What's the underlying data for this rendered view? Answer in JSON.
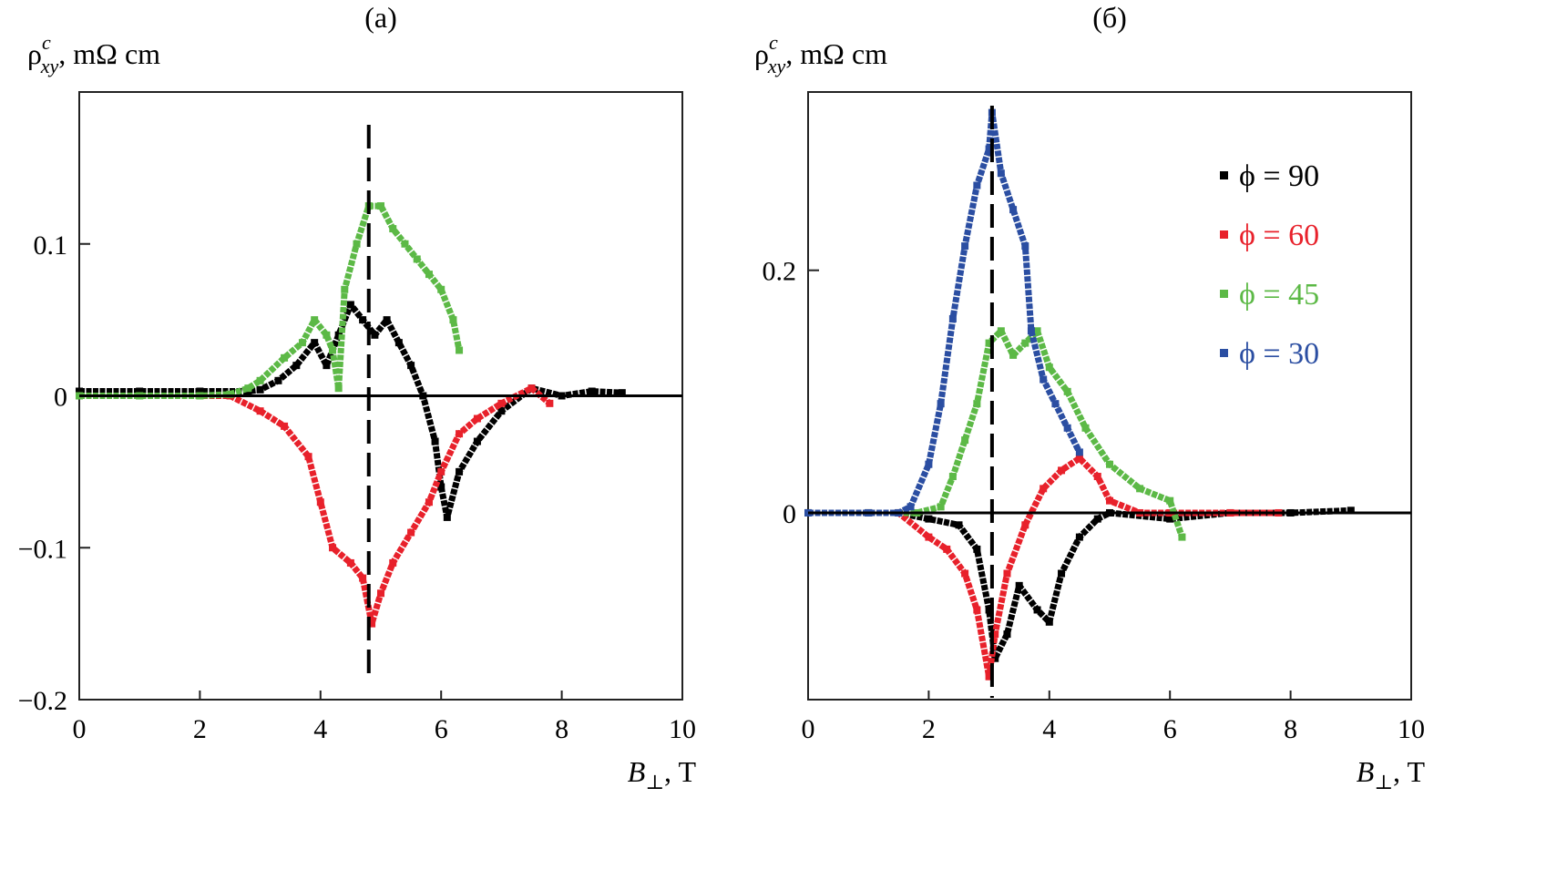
{
  "chart_data": [
    {
      "type": "scatter",
      "panel_label": "(a)",
      "ylabel": "ρ",
      "ylabel_sup": "c",
      "ylabel_sub": "xy",
      "ylabel_unit": ", mΩ cm",
      "xlabel": "B",
      "xlabel_sub": "⊥",
      "xlabel_unit": ", T",
      "xlim": [
        0,
        10
      ],
      "ylim": [
        -0.2,
        0.2
      ],
      "xticks": [
        0,
        2,
        4,
        6,
        8,
        10
      ],
      "xtick_labels": [
        "0",
        "2",
        "4",
        "6",
        "8",
        "10"
      ],
      "yticks": [
        -0.2,
        -0.1,
        0,
        0.1
      ],
      "ytick_labels": [
        "−0.2",
        "−0.1",
        "0",
        "0.1"
      ],
      "dashed_line_x": 4.8,
      "zero_line": true,
      "series": [
        {
          "name": "ϕ = 90",
          "color": "#000000",
          "points": [
            [
              0,
              0.003
            ],
            [
              1,
              0.003
            ],
            [
              2,
              0.003
            ],
            [
              2.8,
              0.003
            ],
            [
              3.0,
              0.004
            ],
            [
              3.3,
              0.01
            ],
            [
              3.6,
              0.02
            ],
            [
              3.9,
              0.035
            ],
            [
              4.1,
              0.02
            ],
            [
              4.3,
              0.04
            ],
            [
              4.5,
              0.06
            ],
            [
              4.7,
              0.05
            ],
            [
              4.9,
              0.04
            ],
            [
              5.1,
              0.05
            ],
            [
              5.3,
              0.035
            ],
            [
              5.5,
              0.02
            ],
            [
              5.7,
              0.0
            ],
            [
              5.9,
              -0.03
            ],
            [
              6.0,
              -0.06
            ],
            [
              6.1,
              -0.08
            ],
            [
              6.3,
              -0.05
            ],
            [
              6.6,
              -0.03
            ],
            [
              7.0,
              -0.01
            ],
            [
              7.5,
              0.005
            ],
            [
              8.0,
              0.0
            ],
            [
              8.5,
              0.003
            ],
            [
              9.0,
              0.002
            ]
          ]
        },
        {
          "name": "ϕ = 60",
          "color": "#e8212b",
          "points": [
            [
              0,
              0
            ],
            [
              1,
              0
            ],
            [
              2,
              0
            ],
            [
              2.5,
              0
            ],
            [
              3.0,
              -0.01
            ],
            [
              3.4,
              -0.02
            ],
            [
              3.8,
              -0.04
            ],
            [
              4.0,
              -0.07
            ],
            [
              4.2,
              -0.1
            ],
            [
              4.5,
              -0.11
            ],
            [
              4.7,
              -0.12
            ],
            [
              4.85,
              -0.15
            ],
            [
              5.0,
              -0.13
            ],
            [
              5.2,
              -0.11
            ],
            [
              5.5,
              -0.09
            ],
            [
              5.8,
              -0.07
            ],
            [
              6.0,
              -0.05
            ],
            [
              6.3,
              -0.025
            ],
            [
              6.6,
              -0.015
            ],
            [
              7.0,
              -0.005
            ],
            [
              7.5,
              0.005
            ],
            [
              7.8,
              -0.005
            ]
          ]
        },
        {
          "name": "ϕ = 45",
          "color": "#5cb946",
          "points": [
            [
              0,
              0
            ],
            [
              1,
              0
            ],
            [
              2,
              0
            ],
            [
              2.5,
              0.001
            ],
            [
              2.8,
              0.005
            ],
            [
              3.0,
              0.01
            ],
            [
              3.4,
              0.025
            ],
            [
              3.7,
              0.035
            ],
            [
              3.9,
              0.05
            ],
            [
              4.1,
              0.04
            ],
            [
              4.2,
              0.03
            ],
            [
              4.3,
              0.005
            ],
            [
              4.4,
              0.07
            ],
            [
              4.6,
              0.1
            ],
            [
              4.8,
              0.125
            ],
            [
              5.0,
              0.125
            ],
            [
              5.2,
              0.11
            ],
            [
              5.4,
              0.1
            ],
            [
              5.6,
              0.09
            ],
            [
              5.8,
              0.08
            ],
            [
              6.0,
              0.07
            ],
            [
              6.2,
              0.05
            ],
            [
              6.3,
              0.03
            ]
          ]
        }
      ]
    },
    {
      "type": "scatter",
      "panel_label": "(б)",
      "ylabel": "ρ",
      "ylabel_sup": "c",
      "ylabel_sub": "xy",
      "ylabel_unit": ", mΩ cm",
      "xlabel": "B",
      "xlabel_sub": "⊥",
      "xlabel_unit": ", T",
      "xlim": [
        0,
        10
      ],
      "ylim": [
        -0.154,
        0.347
      ],
      "xticks": [
        0,
        2,
        4,
        6,
        8,
        10
      ],
      "xtick_labels": [
        "0",
        "2",
        "4",
        "6",
        "8",
        "10"
      ],
      "yticks": [
        0,
        0.2
      ],
      "ytick_labels": [
        "0",
        "0.2"
      ],
      "dashed_line_x": 3.05,
      "zero_line": true,
      "legend_position": "top-right",
      "series": [
        {
          "name": "ϕ = 90",
          "color": "#000000",
          "points": [
            [
              0,
              0
            ],
            [
              1,
              0
            ],
            [
              1.5,
              0
            ],
            [
              2.0,
              -0.005
            ],
            [
              2.5,
              -0.01
            ],
            [
              2.8,
              -0.03
            ],
            [
              3.0,
              -0.08
            ],
            [
              3.1,
              -0.12
            ],
            [
              3.3,
              -0.1
            ],
            [
              3.5,
              -0.06
            ],
            [
              3.8,
              -0.08
            ],
            [
              4.0,
              -0.09
            ],
            [
              4.2,
              -0.05
            ],
            [
              4.5,
              -0.02
            ],
            [
              4.8,
              -0.005
            ],
            [
              5.0,
              0
            ],
            [
              6.0,
              -0.005
            ],
            [
              7.0,
              0
            ],
            [
              8.0,
              0
            ],
            [
              9.0,
              0.002
            ]
          ]
        },
        {
          "name": "ϕ = 60",
          "color": "#e8212b",
          "points": [
            [
              0,
              0
            ],
            [
              1,
              0
            ],
            [
              1.5,
              0
            ],
            [
              2.0,
              -0.02
            ],
            [
              2.3,
              -0.03
            ],
            [
              2.6,
              -0.05
            ],
            [
              2.8,
              -0.08
            ],
            [
              3.0,
              -0.135
            ],
            [
              3.1,
              -0.1
            ],
            [
              3.3,
              -0.05
            ],
            [
              3.6,
              -0.01
            ],
            [
              3.9,
              0.02
            ],
            [
              4.2,
              0.035
            ],
            [
              4.5,
              0.045
            ],
            [
              4.8,
              0.03
            ],
            [
              5.0,
              0.01
            ],
            [
              5.5,
              0
            ],
            [
              6.0,
              0
            ],
            [
              7.0,
              0
            ],
            [
              7.8,
              0
            ]
          ]
        },
        {
          "name": "ϕ = 45",
          "color": "#5cb946",
          "points": [
            [
              0,
              0
            ],
            [
              1,
              0
            ],
            [
              1.8,
              0
            ],
            [
              2.2,
              0.005
            ],
            [
              2.4,
              0.03
            ],
            [
              2.6,
              0.06
            ],
            [
              2.8,
              0.09
            ],
            [
              3.0,
              0.14
            ],
            [
              3.2,
              0.15
            ],
            [
              3.4,
              0.13
            ],
            [
              3.6,
              0.14
            ],
            [
              3.8,
              0.15
            ],
            [
              4.0,
              0.12
            ],
            [
              4.3,
              0.1
            ],
            [
              4.6,
              0.07
            ],
            [
              5.0,
              0.04
            ],
            [
              5.5,
              0.02
            ],
            [
              6.0,
              0.01
            ],
            [
              6.2,
              -0.02
            ]
          ]
        },
        {
          "name": "ϕ = 30",
          "color": "#2b4ea2",
          "points": [
            [
              0,
              0
            ],
            [
              1,
              0
            ],
            [
              1.5,
              0
            ],
            [
              1.7,
              0.005
            ],
            [
              2.0,
              0.04
            ],
            [
              2.2,
              0.09
            ],
            [
              2.4,
              0.16
            ],
            [
              2.6,
              0.22
            ],
            [
              2.8,
              0.27
            ],
            [
              3.0,
              0.3
            ],
            [
              3.05,
              0.33
            ],
            [
              3.2,
              0.28
            ],
            [
              3.4,
              0.25
            ],
            [
              3.6,
              0.22
            ],
            [
              3.7,
              0.15
            ],
            [
              3.9,
              0.11
            ],
            [
              4.1,
              0.09
            ],
            [
              4.3,
              0.07
            ],
            [
              4.5,
              0.05
            ]
          ]
        }
      ]
    }
  ]
}
